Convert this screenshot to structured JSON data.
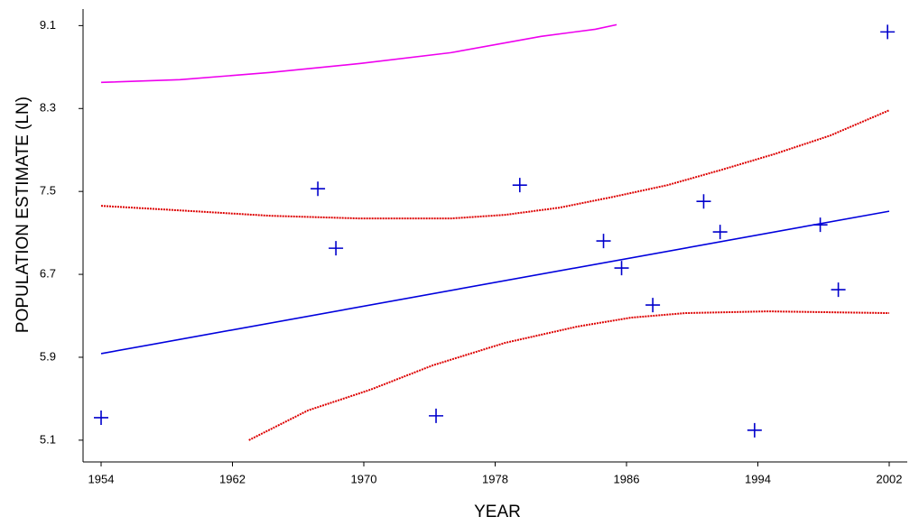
{
  "chart_data": {
    "type": "scatter",
    "xlabel": "YEAR",
    "ylabel": "POPULATION ESTIMATE (LN)",
    "xlim": [
      1952.9,
      2003.1
    ],
    "ylim": [
      4.89,
      9.26
    ],
    "xticks": [
      1954,
      1962,
      1970,
      1978,
      1986,
      1994,
      2002
    ],
    "yticks": [
      5.1,
      5.9,
      6.7,
      7.5,
      8.3,
      9.1
    ],
    "series": [
      {
        "style": "marker",
        "color": "#0000cc",
        "x": [
          1954,
          1967.2,
          1968.3,
          1974.4,
          1979.5,
          1984.6,
          1985.7,
          1987.6,
          1990.7,
          1991.7,
          1993.8,
          1997.8,
          1998.9,
          2001.9
        ],
        "values": [
          5.317,
          7.526,
          6.952,
          5.335,
          7.561,
          7.022,
          6.761,
          6.404,
          7.404,
          7.109,
          5.196,
          7.178,
          6.552,
          9.039
        ]
      },
      {
        "style": "line",
        "color": "#0000dd",
        "x": [
          1954,
          2002
        ],
        "values": [
          5.935,
          7.309
        ]
      },
      {
        "style": "dotted",
        "color": "#dd0000",
        "x": [
          1954,
          1958.8,
          1964.3,
          1969.8,
          1975.3,
          1978.6,
          1981.9,
          1985.2,
          1988.5,
          1991.8,
          1995.1,
          1998.4,
          2002
        ],
        "values": [
          7.361,
          7.317,
          7.265,
          7.239,
          7.239,
          7.274,
          7.343,
          7.448,
          7.561,
          7.709,
          7.865,
          8.039,
          8.283
        ]
      },
      {
        "style": "dotted",
        "color": "#dd0000",
        "x": [
          1963,
          1966.6,
          1970.4,
          1974.2,
          1978.6,
          1983,
          1986.3,
          1989.6,
          1994.6,
          2002
        ],
        "values": [
          5.1,
          5.387,
          5.587,
          5.822,
          6.039,
          6.196,
          6.283,
          6.326,
          6.343,
          6.326
        ]
      },
      {
        "style": "line",
        "color": "#ee00ee",
        "x": [
          1954,
          1958.8,
          1964.3,
          1969.8,
          1975.3,
          1980.8,
          1984.1,
          1985.4
        ],
        "values": [
          8.552,
          8.578,
          8.648,
          8.735,
          8.839,
          8.996,
          9.065,
          9.109
        ]
      }
    ]
  }
}
